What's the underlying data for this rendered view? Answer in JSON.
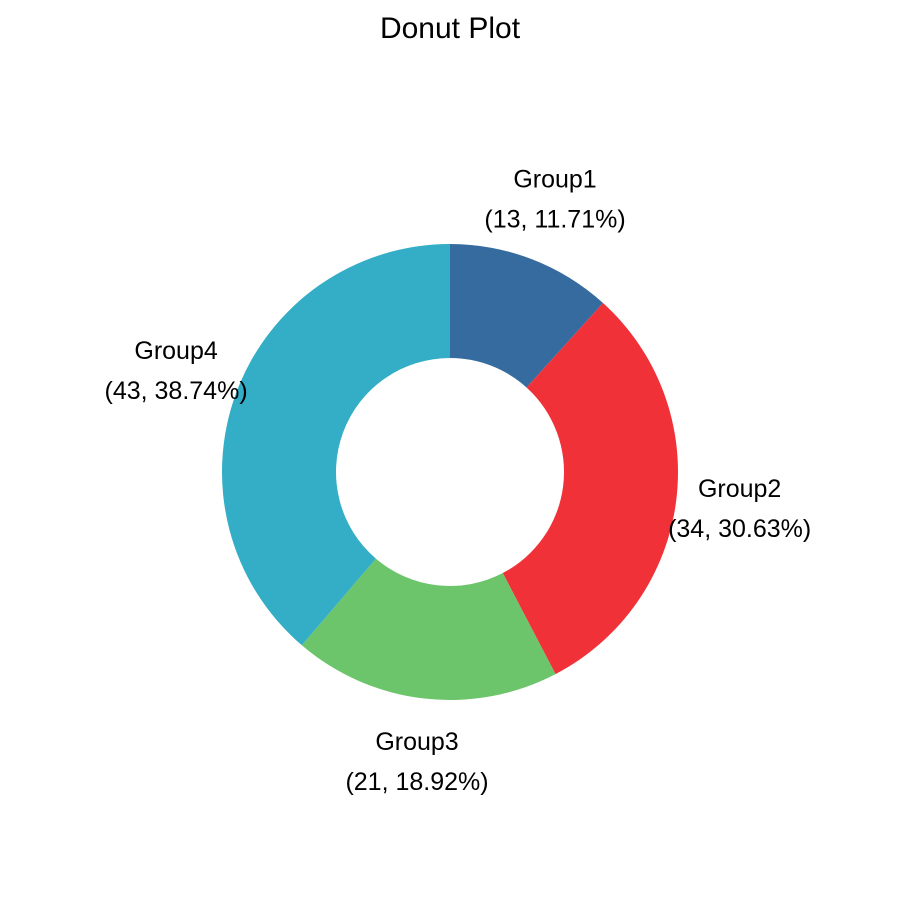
{
  "chart_data": {
    "type": "pie",
    "variant": "donut",
    "title": "Donut Plot",
    "start": "top, clockwise",
    "slices": [
      {
        "label": "Group1",
        "value": 13,
        "percent": "11.71%",
        "value_text": "(13, 11.71%)",
        "color": "#366B9F"
      },
      {
        "label": "Group2",
        "value": 34,
        "percent": "30.63%",
        "value_text": "(34, 30.63%)",
        "color": "#F03238"
      },
      {
        "label": "Group3",
        "value": 21,
        "percent": "18.92%",
        "value_text": "(21, 18.92%)",
        "color": "#6CC56A"
      },
      {
        "label": "Group4",
        "value": 43,
        "percent": "38.74%",
        "value_text": "(43, 38.74%)",
        "color": "#33AEC6"
      }
    ]
  }
}
